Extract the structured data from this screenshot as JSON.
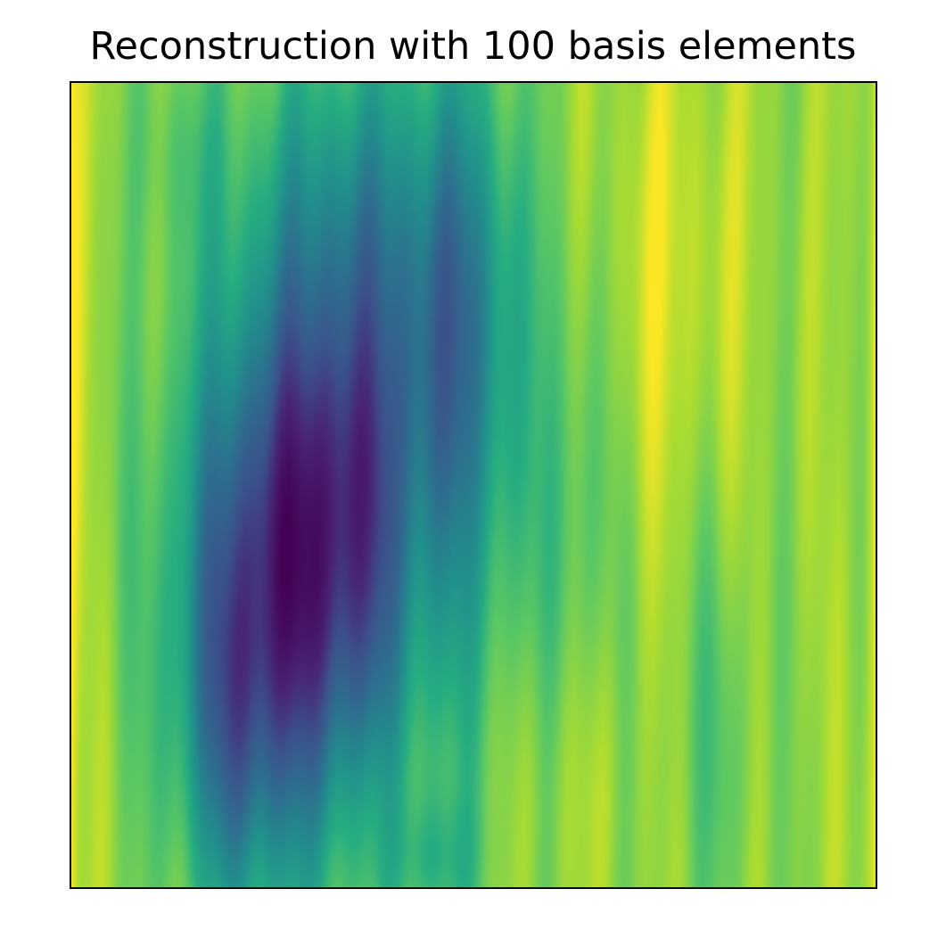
{
  "chart_data": {
    "type": "heatmap",
    "title": "Reconstruction with 100 basis elements",
    "xlabel": "",
    "ylabel": "",
    "x_ticks": [],
    "y_ticks": [],
    "colormap": "viridis",
    "legend": "none",
    "grid": false
  }
}
